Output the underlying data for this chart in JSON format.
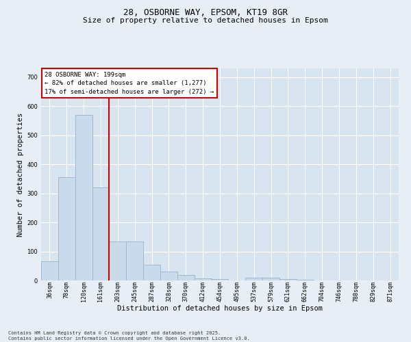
{
  "title1": "28, OSBORNE WAY, EPSOM, KT19 8GR",
  "title2": "Size of property relative to detached houses in Epsom",
  "xlabel": "Distribution of detached houses by size in Epsom",
  "ylabel": "Number of detached properties",
  "categories": [
    "36sqm",
    "78sqm",
    "120sqm",
    "161sqm",
    "203sqm",
    "245sqm",
    "287sqm",
    "328sqm",
    "370sqm",
    "412sqm",
    "454sqm",
    "495sqm",
    "537sqm",
    "579sqm",
    "621sqm",
    "662sqm",
    "704sqm",
    "746sqm",
    "788sqm",
    "829sqm",
    "871sqm"
  ],
  "values": [
    65,
    355,
    570,
    320,
    135,
    135,
    55,
    30,
    20,
    8,
    5,
    0,
    10,
    10,
    5,
    2,
    0,
    0,
    0,
    0,
    0
  ],
  "bar_color": "#c9daea",
  "bar_edge_color": "#a0b8d0",
  "vline_color": "#cc0000",
  "vline_x": 3.5,
  "ylim": [
    0,
    730
  ],
  "yticks": [
    0,
    100,
    200,
    300,
    400,
    500,
    600,
    700
  ],
  "annotation_title": "28 OSBORNE WAY: 199sqm",
  "annotation_line1": "← 82% of detached houses are smaller (1,277)",
  "annotation_line2": "17% of semi-detached houses are larger (272) →",
  "annotation_box_color": "#cc0000",
  "footer1": "Contains HM Land Registry data © Crown copyright and database right 2025.",
  "footer2": "Contains public sector information licensed under the Open Government Licence v3.0.",
  "bg_color": "#e8eef5",
  "plot_bg_color": "#d8e4f0",
  "grid_color": "#ffffff",
  "title_fontsize": 9,
  "subtitle_fontsize": 8,
  "axis_label_fontsize": 7.5,
  "tick_fontsize": 6,
  "annot_fontsize": 6.5,
  "footer_fontsize": 5
}
